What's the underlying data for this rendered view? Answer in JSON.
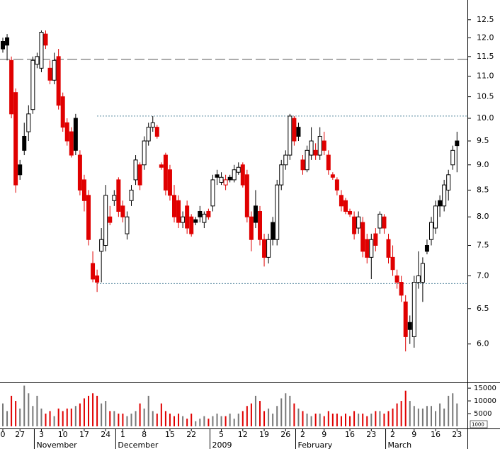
{
  "chart_data": {
    "type": "candlestick",
    "log_scale": true,
    "ylim": [
      5.5,
      13.07
    ],
    "yticks": [
      {
        "value": 6,
        "label": "6.0"
      },
      6.5,
      {
        "value": 7,
        "label": "7.0"
      },
      7.5,
      {
        "value": 8,
        "label": "8.0"
      },
      8.5,
      {
        "value": 9,
        "label": "9.0"
      },
      9.5,
      {
        "value": 10,
        "label": "10.0"
      },
      10.5,
      {
        "value": 11,
        "label": "11.0"
      },
      11.5,
      {
        "value": 12,
        "label": "12.0"
      },
      12.5
    ],
    "up_color": "#000000",
    "down_color": "#e00000",
    "volume_color": "#777777",
    "open": [
      11.9,
      12.0,
      11.4,
      10.6,
      9.0,
      9.6,
      9.7,
      10.2,
      11.3,
      11.2,
      12.1,
      11.2,
      10.9,
      11.5,
      10.5,
      9.9,
      9.7,
      10.0,
      9.2,
      8.7,
      8.4,
      7.2,
      7.0,
      7.4,
      7.5,
      8.0,
      8.3,
      8.7,
      8.2,
      7.7,
      8.3,
      8.7,
      9.0,
      9.0,
      9.5,
      9.8,
      9.8,
      9.0,
      9.2,
      8.9,
      8.4,
      8.3,
      7.9,
      8.2,
      8.0,
      7.95,
      8.1,
      7.9,
      8.1,
      8.2,
      8.8,
      8.65,
      8.6,
      8.75,
      8.7,
      8.85,
      9.0,
      8.8,
      8.0,
      8.2,
      8.1,
      7.6,
      7.3,
      7.9,
      7.6,
      8.6,
      9.0,
      9.2,
      10.0,
      9.8,
      9.1,
      8.9,
      9.2,
      9.3,
      9.2,
      9.5,
      9.2,
      8.8,
      8.7,
      8.4,
      8.3,
      8.1,
      8.0,
      7.8,
      7.9,
      7.6,
      7.3,
      7.7,
      7.8,
      8.0,
      7.6,
      7.3,
      7.0,
      6.9,
      6.6,
      6.3,
      6.1,
      6.9,
      6.9,
      7.5,
      7.6,
      7.8,
      8.3,
      8.2,
      8.5,
      9.0,
      9.5
    ],
    "high": [
      12.0,
      12.1,
      11.5,
      10.7,
      9.1,
      9.9,
      10.3,
      11.5,
      11.6,
      12.2,
      12.2,
      11.4,
      11.6,
      11.7,
      10.6,
      10.0,
      9.8,
      10.1,
      9.3,
      8.8,
      8.5,
      7.4,
      7.1,
      7.8,
      8.6,
      8.2,
      8.5,
      8.75,
      8.3,
      8.1,
      8.6,
      9.2,
      9.05,
      9.6,
      9.9,
      10.05,
      9.85,
      9.05,
      9.25,
      9.0,
      8.6,
      8.4,
      8.1,
      8.3,
      8.05,
      8.0,
      8.2,
      8.1,
      8.15,
      8.8,
      8.9,
      8.85,
      8.8,
      8.8,
      9.0,
      9.05,
      9.05,
      8.9,
      8.1,
      8.5,
      8.2,
      7.7,
      7.7,
      8.0,
      8.7,
      9.1,
      9.3,
      10.1,
      10.05,
      9.9,
      9.2,
      9.4,
      9.8,
      9.45,
      9.8,
      9.7,
      9.3,
      8.85,
      8.75,
      8.5,
      8.35,
      8.15,
      8.1,
      8.1,
      8.0,
      7.7,
      7.7,
      7.8,
      8.1,
      8.05,
      7.7,
      7.5,
      7.1,
      7.0,
      6.7,
      6.4,
      7.0,
      7.4,
      7.3,
      7.6,
      8.0,
      8.3,
      8.4,
      8.7,
      8.9,
      9.4,
      9.7
    ],
    "low": [
      11.6,
      11.4,
      10.0,
      8.45,
      8.7,
      9.2,
      9.5,
      10.1,
      11.2,
      11.1,
      11.7,
      10.8,
      10.8,
      10.2,
      9.7,
      9.4,
      9.15,
      9.2,
      8.4,
      8.1,
      7.5,
      6.9,
      6.75,
      6.9,
      7.4,
      7.85,
      8.2,
      8.0,
      7.9,
      7.6,
      8.2,
      8.6,
      8.5,
      8.9,
      9.4,
      9.7,
      9.55,
      8.9,
      8.4,
      8.3,
      7.9,
      7.8,
      7.8,
      7.7,
      7.65,
      7.85,
      7.9,
      7.8,
      7.95,
      8.1,
      8.6,
      8.6,
      8.5,
      8.65,
      8.65,
      8.8,
      8.55,
      7.9,
      7.4,
      7.8,
      7.5,
      7.15,
      7.2,
      7.5,
      7.5,
      8.5,
      8.9,
      9.1,
      9.4,
      9.5,
      8.8,
      8.85,
      9.1,
      9.1,
      9.1,
      9.2,
      8.8,
      8.7,
      8.4,
      8.1,
      8.05,
      8.0,
      7.6,
      7.7,
      7.3,
      7.2,
      6.95,
      7.4,
      7.7,
      7.7,
      7.2,
      7.0,
      6.8,
      6.6,
      5.9,
      6.0,
      5.95,
      6.8,
      6.6,
      7.35,
      7.5,
      7.7,
      8.0,
      8.1,
      8.3,
      8.9,
      8.85
    ],
    "close": [
      11.7,
      11.8,
      10.1,
      8.6,
      8.8,
      9.3,
      10.1,
      11.4,
      11.5,
      12.15,
      11.8,
      10.9,
      11.4,
      10.3,
      9.8,
      9.5,
      9.2,
      9.3,
      8.5,
      8.3,
      7.6,
      6.95,
      6.9,
      7.6,
      8.4,
      7.9,
      8.4,
      8.1,
      8.0,
      8.0,
      8.5,
      9.1,
      8.6,
      9.5,
      9.8,
      9.9,
      9.6,
      8.95,
      8.5,
      8.4,
      8.0,
      7.9,
      8.0,
      7.8,
      7.7,
      7.9,
      8.0,
      8.05,
      8.0,
      8.7,
      8.75,
      8.75,
      8.7,
      8.7,
      8.9,
      8.95,
      8.6,
      8.0,
      7.6,
      7.9,
      7.6,
      7.3,
      7.6,
      7.6,
      8.6,
      9.0,
      9.2,
      10.05,
      9.5,
      9.6,
      8.9,
      9.3,
      9.5,
      9.2,
      9.6,
      9.3,
      8.9,
      8.75,
      8.5,
      8.2,
      8.1,
      8.05,
      7.7,
      8.0,
      7.4,
      7.3,
      7.6,
      7.5,
      8.05,
      7.8,
      7.3,
      7.1,
      6.9,
      6.7,
      6.1,
      6.2,
      6.9,
      7.0,
      7.2,
      7.4,
      7.9,
      8.2,
      8.2,
      8.6,
      8.8,
      9.3,
      9.4
    ],
    "reference_lines": [
      {
        "value": 11.43,
        "style": "dashed"
      },
      {
        "value": 10.05,
        "style": "dotted"
      },
      {
        "value": 6.88,
        "style": "dotted"
      }
    ],
    "xticks": [
      {
        "value": 0,
        "label": "0"
      },
      {
        "value": 4,
        "label": "27"
      },
      {
        "value": 9,
        "label": "3"
      },
      {
        "value": 14,
        "label": "10"
      },
      {
        "value": 19,
        "label": "17"
      },
      {
        "value": 24,
        "label": "24"
      },
      {
        "value": 28,
        "label": "1"
      },
      {
        "value": 33,
        "label": "8"
      },
      {
        "value": 39,
        "label": "15"
      },
      {
        "value": 44,
        "label": "22"
      },
      {
        "value": 51,
        "label": "5"
      },
      {
        "value": 56,
        "label": "12"
      },
      {
        "value": 61,
        "label": "19"
      },
      {
        "value": 66,
        "label": "26"
      },
      {
        "value": 70,
        "label": "2"
      },
      {
        "value": 75,
        "label": "9"
      },
      {
        "value": 81,
        "label": "16"
      },
      {
        "value": 86,
        "label": "23"
      },
      {
        "value": 91,
        "label": "2"
      },
      {
        "value": 96,
        "label": "9"
      },
      {
        "value": 101,
        "label": "16"
      },
      {
        "value": 106,
        "label": "23"
      }
    ],
    "months": [
      {
        "value": 9,
        "label": "November"
      },
      {
        "value": 28,
        "label": "December"
      },
      {
        "value": 50,
        "label": "2009"
      },
      {
        "value": 70,
        "label": "February"
      },
      {
        "value": 91,
        "label": "March"
      }
    ],
    "volume": {
      "ylim": [
        0,
        16700
      ],
      "yticks": [
        15000,
        10000,
        5000
      ],
      "note": "1000",
      "values": [
        9000,
        6000,
        12000,
        10000,
        7000,
        16000,
        13000,
        8000,
        12000,
        7000,
        5000,
        6000,
        4000,
        7000,
        6000,
        7000,
        7000,
        8000,
        9000,
        11000,
        12000,
        13000,
        12000,
        9000,
        10000,
        6000,
        6000,
        5000,
        5000,
        4000,
        5000,
        6000,
        9000,
        7000,
        12000,
        6000,
        5000,
        9000,
        6000,
        5000,
        4000,
        5000,
        4000,
        3000,
        5000,
        2000,
        3000,
        4000,
        3000,
        4000,
        5000,
        4000,
        4000,
        5000,
        3000,
        5000,
        6000,
        8000,
        9000,
        12000,
        10000,
        6000,
        7000,
        5000,
        8000,
        11000,
        13000,
        12000,
        9000,
        7000,
        6000,
        5000,
        4000,
        5000,
        5000,
        4000,
        6000,
        5000,
        5000,
        4000,
        5000,
        4000,
        6000,
        5000,
        5000,
        4000,
        5000,
        6000,
        6000,
        5000,
        6000,
        7000,
        9000,
        10000,
        14000,
        10000,
        8000,
        7000,
        7000,
        8000,
        8000,
        6000,
        9000,
        7000,
        12000,
        13000,
        9000
      ]
    }
  }
}
